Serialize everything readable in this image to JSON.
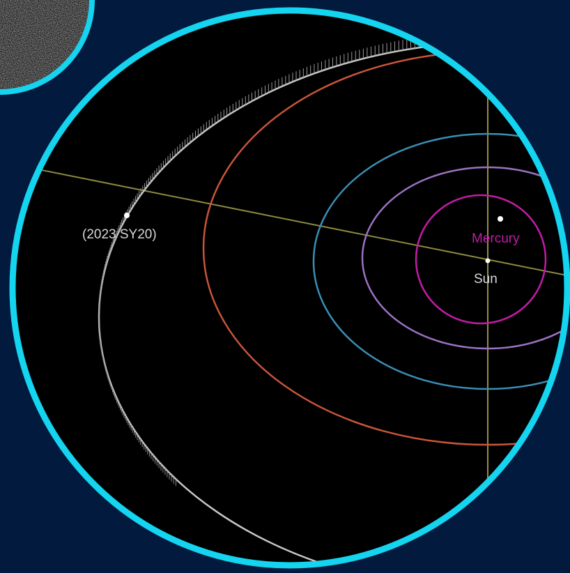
{
  "colors": {
    "background": "#011a3d",
    "frame": "#14d4f0",
    "space": "#000000",
    "ecliptic_line": "#8e8a3e",
    "vertical_line": "#c9bf5a",
    "asteroid_orbit": "#c8c8c8",
    "outer_orbit": "#c9553a",
    "earth_orbit": "#3a8fb5",
    "venus_orbit": "#9a72c4",
    "mercury_orbit": "#c21ca6",
    "mercury_label": "#c21ca6",
    "label_text": "#d8d8d8"
  },
  "labels": {
    "asteroid": "(2023 SY20)",
    "planet": "Mercury",
    "star": "Sun"
  },
  "icons": {
    "inset": "asteroid-photo-inset-icon",
    "asteroid_marker": "dot-icon",
    "mercury_marker": "dot-icon",
    "sun_marker": "dot-icon"
  }
}
